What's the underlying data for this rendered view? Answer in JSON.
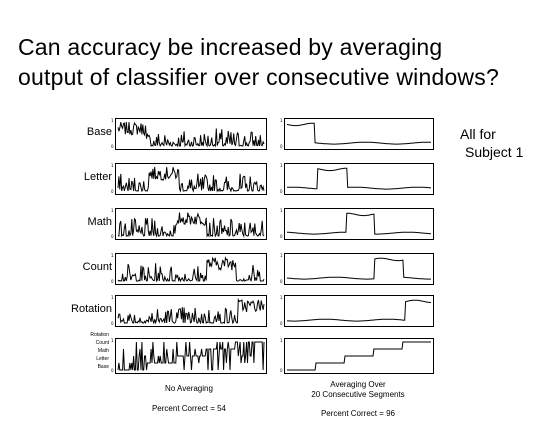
{
  "title": {
    "line1": "Can accuracy be increased by averaging",
    "line2": "output of classifier over consecutive windows?"
  },
  "note": {
    "line1": "All for",
    "line2": "Subject 1"
  },
  "rows": [
    {
      "label": "Base",
      "active": [
        0.0,
        0.19
      ]
    },
    {
      "label": "Letter",
      "active": [
        0.21,
        0.42
      ]
    },
    {
      "label": "Math",
      "active": [
        0.41,
        0.61
      ]
    },
    {
      "label": "Count",
      "active": [
        0.61,
        0.81
      ]
    },
    {
      "label": "Rotation",
      "active": [
        0.82,
        1.0
      ]
    }
  ],
  "class_axis_labels": [
    "Rotation",
    "Count",
    "Math",
    "Letter",
    "Base"
  ],
  "left_column": {
    "caption": "No Averaging",
    "percent": "Percent Correct = 54"
  },
  "right_column": {
    "caption_line1": "Averaging Over",
    "caption_line2": "20 Consecutive Segments",
    "percent": "Percent Correct = 96"
  },
  "steps": [
    0,
    1,
    2,
    3,
    4
  ],
  "colors": {
    "line": "#000000",
    "background": "#ffffff"
  }
}
